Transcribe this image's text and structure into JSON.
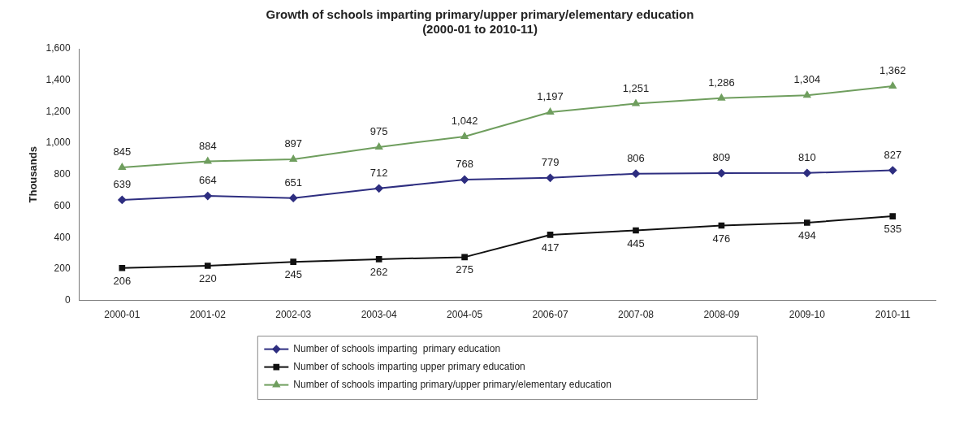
{
  "chart_data": {
    "type": "line",
    "title": "Growth of schools imparting primary/upper primary/elementary education\n(2000-01 to 2010-11)",
    "ylabel": "Thousands",
    "categories": [
      "2000-01",
      "2001-02",
      "2002-03",
      "2003-04",
      "2004-05",
      "2006-07",
      "2007-08",
      "2008-09",
      "2009-10",
      "2010-11"
    ],
    "series": [
      {
        "name": "Number of schools imparting  primary education",
        "color": "#2e2e80",
        "marker": "diamond",
        "values": [
          639,
          664,
          651,
          712,
          768,
          779,
          806,
          809,
          810,
          827
        ],
        "value_labels": [
          "639",
          "664",
          "651",
          "712",
          "768",
          "779",
          "806",
          "809",
          "810",
          "827"
        ]
      },
      {
        "name": "Number of schools imparting upper primary education",
        "color": "#111111",
        "marker": "square",
        "values": [
          206,
          220,
          245,
          262,
          275,
          417,
          445,
          476,
          494,
          535
        ],
        "value_labels": [
          "206",
          "220",
          "245",
          "262",
          "275",
          "417",
          "445",
          "476",
          "494",
          "535"
        ]
      },
      {
        "name": "Number of schools imparting primary/upper primary/elementary education",
        "color": "#6f9e5e",
        "marker": "triangle",
        "values": [
          845,
          884,
          897,
          975,
          1042,
          1197,
          1251,
          1286,
          1304,
          1362
        ],
        "value_labels": [
          "845",
          "884",
          "897",
          "975",
          "1,042",
          "1,197",
          "1,251",
          "1,286",
          "1,304",
          "1,362"
        ]
      }
    ],
    "ylim": [
      0,
      1600
    ],
    "yticks": [
      {
        "value": 0,
        "label": "0"
      },
      {
        "value": 200,
        "label": "200"
      },
      {
        "value": 400,
        "label": "400"
      },
      {
        "value": 600,
        "label": "600"
      },
      {
        "value": 800,
        "label": "800"
      },
      {
        "value": 1000,
        "label": "1,000"
      },
      {
        "value": 1200,
        "label": "1,200"
      },
      {
        "value": 1400,
        "label": "1,400"
      },
      {
        "value": 1600,
        "label": "1,600"
      }
    ],
    "grid": false,
    "legend": "bottom",
    "line_style": "solid"
  }
}
